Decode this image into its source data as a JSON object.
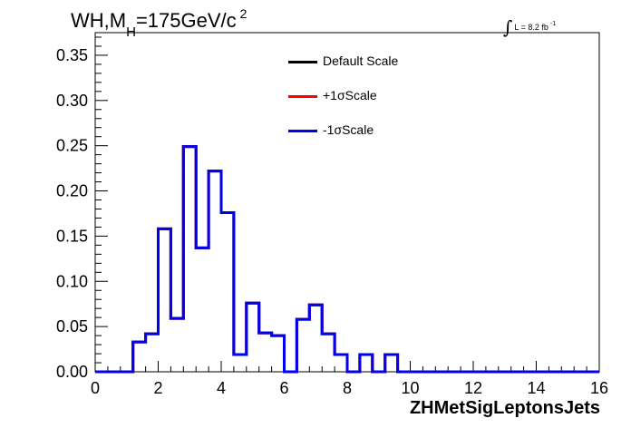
{
  "header": {
    "title_main": "WH,M",
    "title_sub": "H",
    "title_rest": "=175GeV/c",
    "title_sup": "2",
    "lumi_integral": "∫",
    "lumi_text": "L = 8.2 fb",
    "lumi_sup": "-1"
  },
  "chart_data": {
    "type": "histogram",
    "title": "WH,MH=175GeV/c 2",
    "xlabel": "ZHMetSigLeptonsJets",
    "ylabel": "",
    "xlim": [
      0,
      16
    ],
    "ylim": [
      0,
      0.375
    ],
    "bin_width": 0.4,
    "x_ticks": [
      "0",
      "2",
      "4",
      "6",
      "8",
      "10",
      "12",
      "14",
      "16"
    ],
    "y_ticks": [
      "0.00",
      "0.05",
      "0.10",
      "0.15",
      "0.20",
      "0.25",
      "0.30",
      "0.35"
    ],
    "grid": false,
    "legend_position": "top-center",
    "bin_edges": [
      0,
      0.4,
      0.8,
      1.2,
      1.6,
      2.0,
      2.4,
      2.8,
      3.2,
      3.6,
      4.0,
      4.4,
      4.8,
      5.2,
      5.6,
      6.0,
      6.4,
      6.8,
      7.2,
      7.6,
      8.0,
      8.4,
      8.8,
      9.2,
      9.6,
      10.0,
      10.4,
      10.8,
      11.2,
      11.6,
      12.0,
      12.4,
      12.8,
      13.2,
      13.6,
      14.0,
      14.4,
      14.8,
      15.2,
      15.6,
      16.0
    ],
    "series": [
      {
        "name": "Default Scale",
        "color": "#000000",
        "values": [
          0,
          0,
          0,
          0.033,
          0.042,
          0.158,
          0.059,
          0.249,
          0.137,
          0.222,
          0.176,
          0.019,
          0.076,
          0.043,
          0.04,
          0,
          0.058,
          0.074,
          0.042,
          0.019,
          0,
          0.019,
          0,
          0.019,
          0,
          0,
          0,
          0,
          0,
          0,
          0,
          0,
          0,
          0,
          0,
          0,
          0,
          0,
          0,
          0
        ]
      },
      {
        "name": "+1σScale",
        "color": "#ff0000",
        "values": [
          0,
          0,
          0,
          0.033,
          0.042,
          0.158,
          0.059,
          0.249,
          0.137,
          0.222,
          0.176,
          0.019,
          0.076,
          0.043,
          0.04,
          0,
          0.058,
          0.074,
          0.042,
          0.019,
          0,
          0.019,
          0,
          0.019,
          0,
          0,
          0,
          0,
          0,
          0,
          0,
          0,
          0,
          0,
          0,
          0,
          0,
          0,
          0,
          0
        ]
      },
      {
        "name": "-1σScale",
        "color": "#0000ee",
        "values": [
          0,
          0,
          0,
          0.033,
          0.042,
          0.158,
          0.059,
          0.249,
          0.137,
          0.222,
          0.176,
          0.019,
          0.076,
          0.043,
          0.04,
          0,
          0.058,
          0.074,
          0.042,
          0.019,
          0,
          0.019,
          0,
          0.019,
          0,
          0,
          0,
          0,
          0,
          0,
          0,
          0,
          0,
          0,
          0,
          0,
          0,
          0,
          0,
          0
        ]
      }
    ]
  }
}
